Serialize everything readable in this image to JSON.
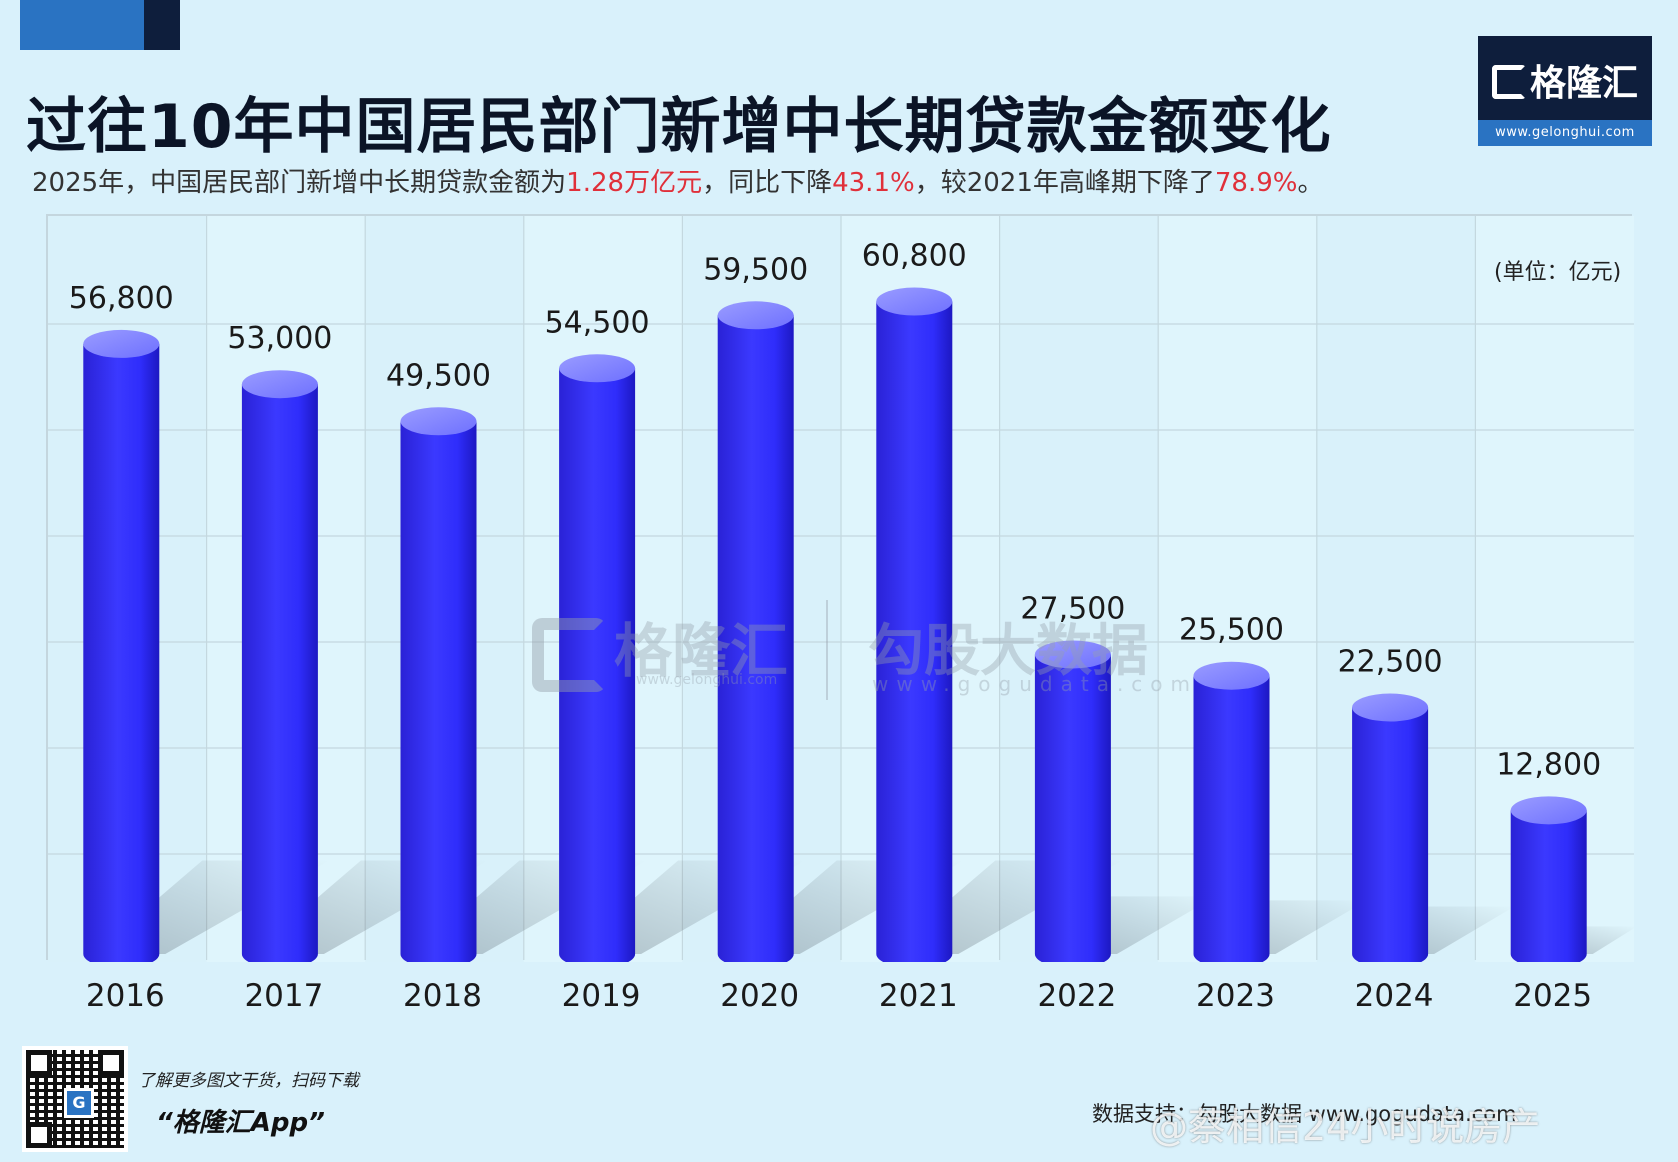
{
  "header": {
    "title": "过往10年中国居民部门新增中长期贷款金额变化",
    "subtitle_parts": [
      {
        "text": "2025年，中国居民部门新增中长期贷款金额为",
        "hl": false
      },
      {
        "text": "1.28万亿元",
        "hl": true
      },
      {
        "text": "，同比下降",
        "hl": false
      },
      {
        "text": "43.1%",
        "hl": true
      },
      {
        "text": "，较2021年高峰期下降了",
        "hl": false
      },
      {
        "text": "78.9%",
        "hl": true
      },
      {
        "text": "。",
        "hl": false
      }
    ],
    "highlight_color": "#e0303a"
  },
  "logo": {
    "name": "格隆汇",
    "url": "www.gelonghui.com",
    "bg_color": "#0e1e3c",
    "accent_color": "#2a73c2"
  },
  "chart_data": {
    "type": "bar",
    "style": "3d-cylinder",
    "title": "",
    "unit": "(单位：亿元)",
    "categories": [
      "2016",
      "2017",
      "2018",
      "2019",
      "2020",
      "2021",
      "2022",
      "2023",
      "2024",
      "2025"
    ],
    "values": [
      56800,
      53000,
      49500,
      54500,
      59500,
      60800,
      27500,
      25500,
      22500,
      12800
    ],
    "value_labels": [
      "56,800",
      "53,000",
      "49,500",
      "54,500",
      "59,500",
      "60,800",
      "27,500",
      "25,500",
      "22,500",
      "12,800"
    ],
    "ylim": [
      0,
      70000
    ],
    "grid": true,
    "bar_color": "#2f2dfb",
    "xlabel": "",
    "ylabel": ""
  },
  "watermarks": {
    "left_name": "格隆汇",
    "left_url": "www.gelonghui.com",
    "right_name": "勾股大数据",
    "right_url": "www.gogudata.com"
  },
  "footer": {
    "promo_line": "了解更多图文干货，扫码下载",
    "app_name": "“格隆汇App”",
    "source": "数据支持：勾股大数据 www.gogudata.com",
    "weibo_handle": "@蔡相信24小时说房产"
  }
}
